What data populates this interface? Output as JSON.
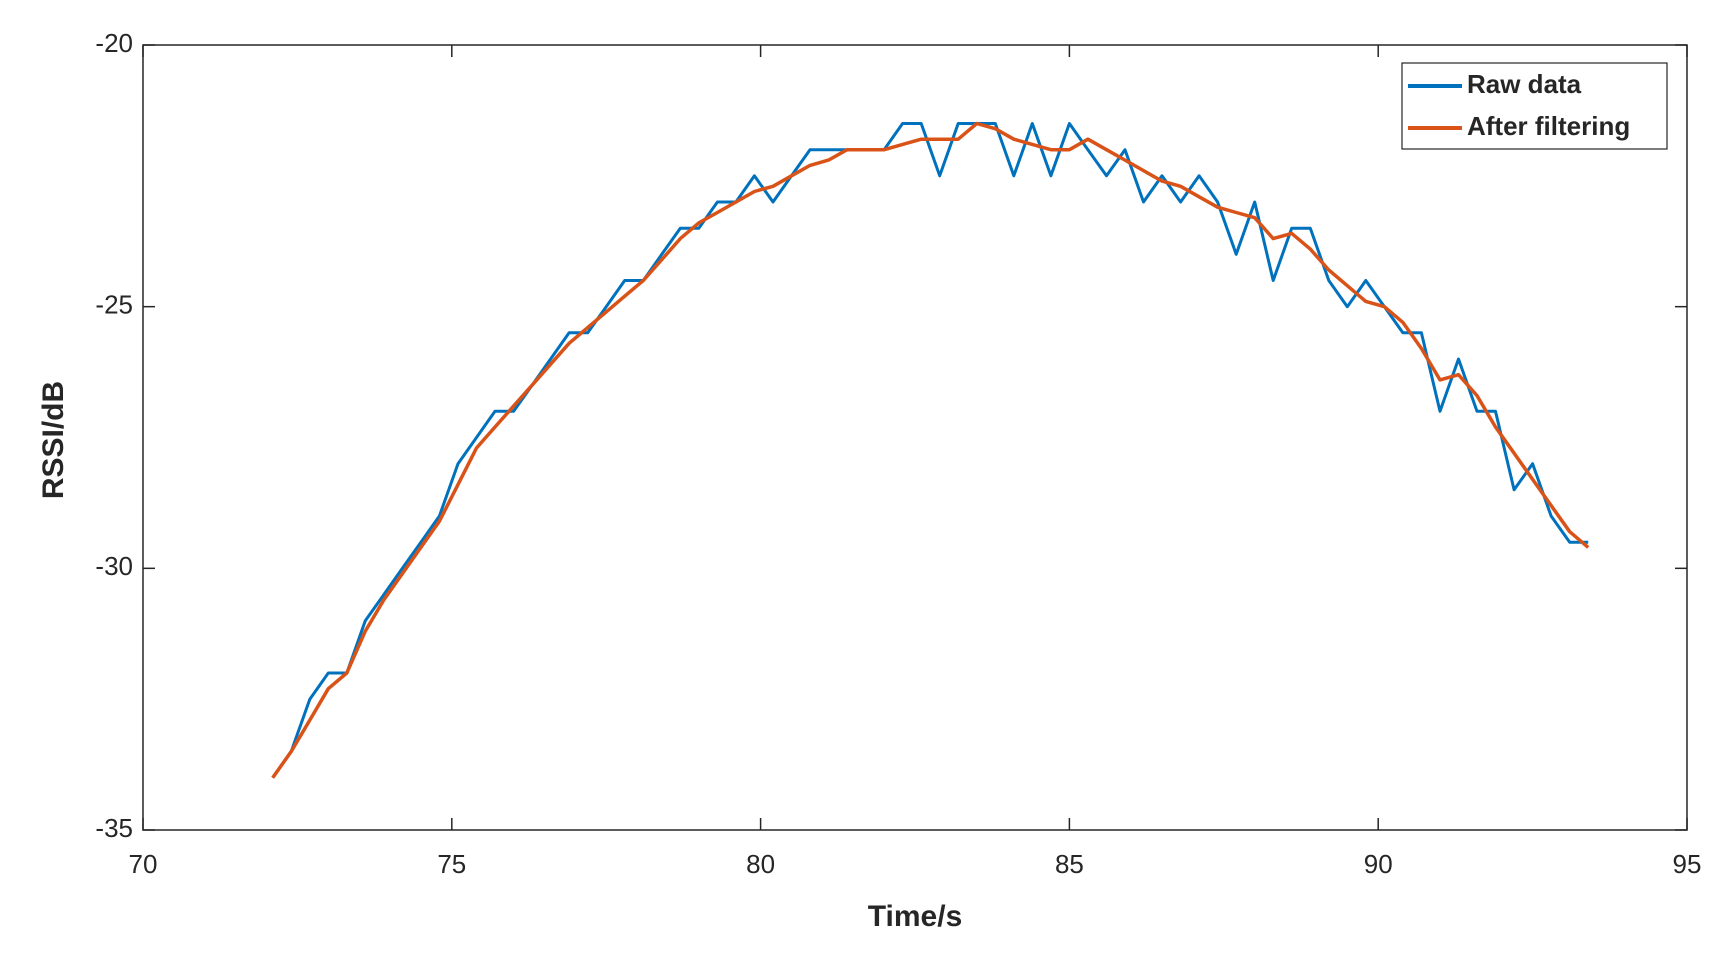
{
  "chart_data": {
    "type": "line",
    "xlabel": "Time/s",
    "ylabel": "RSSI/dB",
    "xlim": [
      70,
      95
    ],
    "xticks": [
      70,
      75,
      80,
      85,
      90,
      95
    ],
    "ylim": [
      -35,
      -20
    ],
    "yticks": [
      -35,
      -30,
      -25,
      -20
    ],
    "legend": "upper right",
    "x": [
      72.1,
      72.4,
      72.7,
      73.0,
      73.3,
      73.6,
      73.9,
      74.2,
      74.5,
      74.8,
      75.1,
      75.4,
      75.7,
      76.0,
      76.3,
      76.6,
      76.9,
      77.2,
      77.5,
      77.8,
      78.1,
      78.4,
      78.7,
      79.0,
      79.3,
      79.6,
      79.9,
      80.2,
      80.5,
      80.8,
      81.1,
      81.4,
      81.7,
      82.0,
      82.3,
      82.6,
      82.9,
      83.2,
      83.5,
      83.8,
      84.1,
      84.4,
      84.7,
      85.0,
      85.3,
      85.6,
      85.9,
      86.2,
      86.5,
      86.8,
      87.1,
      87.4,
      87.7,
      88.0,
      88.3,
      88.6,
      88.9,
      89.2,
      89.5,
      89.8,
      90.1,
      90.4,
      90.7,
      91.0,
      91.3,
      91.6,
      91.9,
      92.2,
      92.5,
      92.8,
      93.1,
      93.4
    ],
    "series": [
      {
        "name": "Raw data",
        "color": "#0072bd",
        "values": [
          -34,
          -33.5,
          -32.5,
          -32,
          -32,
          -31,
          -30.5,
          -30,
          -29.5,
          -29,
          -28,
          -27.5,
          -27,
          -27,
          -26.5,
          -26,
          -25.5,
          -25.5,
          -25,
          -24.5,
          -24.5,
          -24,
          -23.5,
          -23.5,
          -23,
          -23,
          -22.5,
          -23,
          -22.5,
          -22,
          -22,
          -22,
          -22,
          -22,
          -21.5,
          -21.5,
          -22.5,
          -21.5,
          -21.5,
          -21.5,
          -22.5,
          -21.5,
          -22.5,
          -21.5,
          -22,
          -22.5,
          -22,
          -23,
          -22.5,
          -23,
          -22.5,
          -23,
          -24,
          -23,
          -24.5,
          -23.5,
          -23.5,
          -24.5,
          -25,
          -24.5,
          -25,
          -25.5,
          -25.5,
          -27,
          -26,
          -27,
          -27,
          -28.5,
          -28,
          -29,
          -29.5,
          -29.5
        ]
      },
      {
        "name": "After filtering",
        "color": "#d95319",
        "values": [
          -34,
          -33.5,
          -32.9,
          -32.3,
          -32.0,
          -31.2,
          -30.6,
          -30.1,
          -29.6,
          -29.1,
          -28.4,
          -27.7,
          -27.3,
          -26.9,
          -26.5,
          -26.1,
          -25.7,
          -25.4,
          -25.1,
          -24.8,
          -24.5,
          -24.1,
          -23.7,
          -23.4,
          -23.2,
          -23.0,
          -22.8,
          -22.7,
          -22.5,
          -22.3,
          -22.2,
          -22.0,
          -22.0,
          -22.0,
          -21.9,
          -21.8,
          -21.8,
          -21.8,
          -21.5,
          -21.6,
          -21.8,
          -21.9,
          -22.0,
          -22.0,
          -21.8,
          -22.0,
          -22.2,
          -22.4,
          -22.6,
          -22.7,
          -22.9,
          -23.1,
          -23.2,
          -23.3,
          -23.7,
          -23.6,
          -23.9,
          -24.3,
          -24.6,
          -24.9,
          -25.0,
          -25.3,
          -25.8,
          -26.4,
          -26.3,
          -26.7,
          -27.3,
          -27.8,
          -28.3,
          -28.8,
          -29.3,
          -29.6
        ]
      }
    ]
  }
}
